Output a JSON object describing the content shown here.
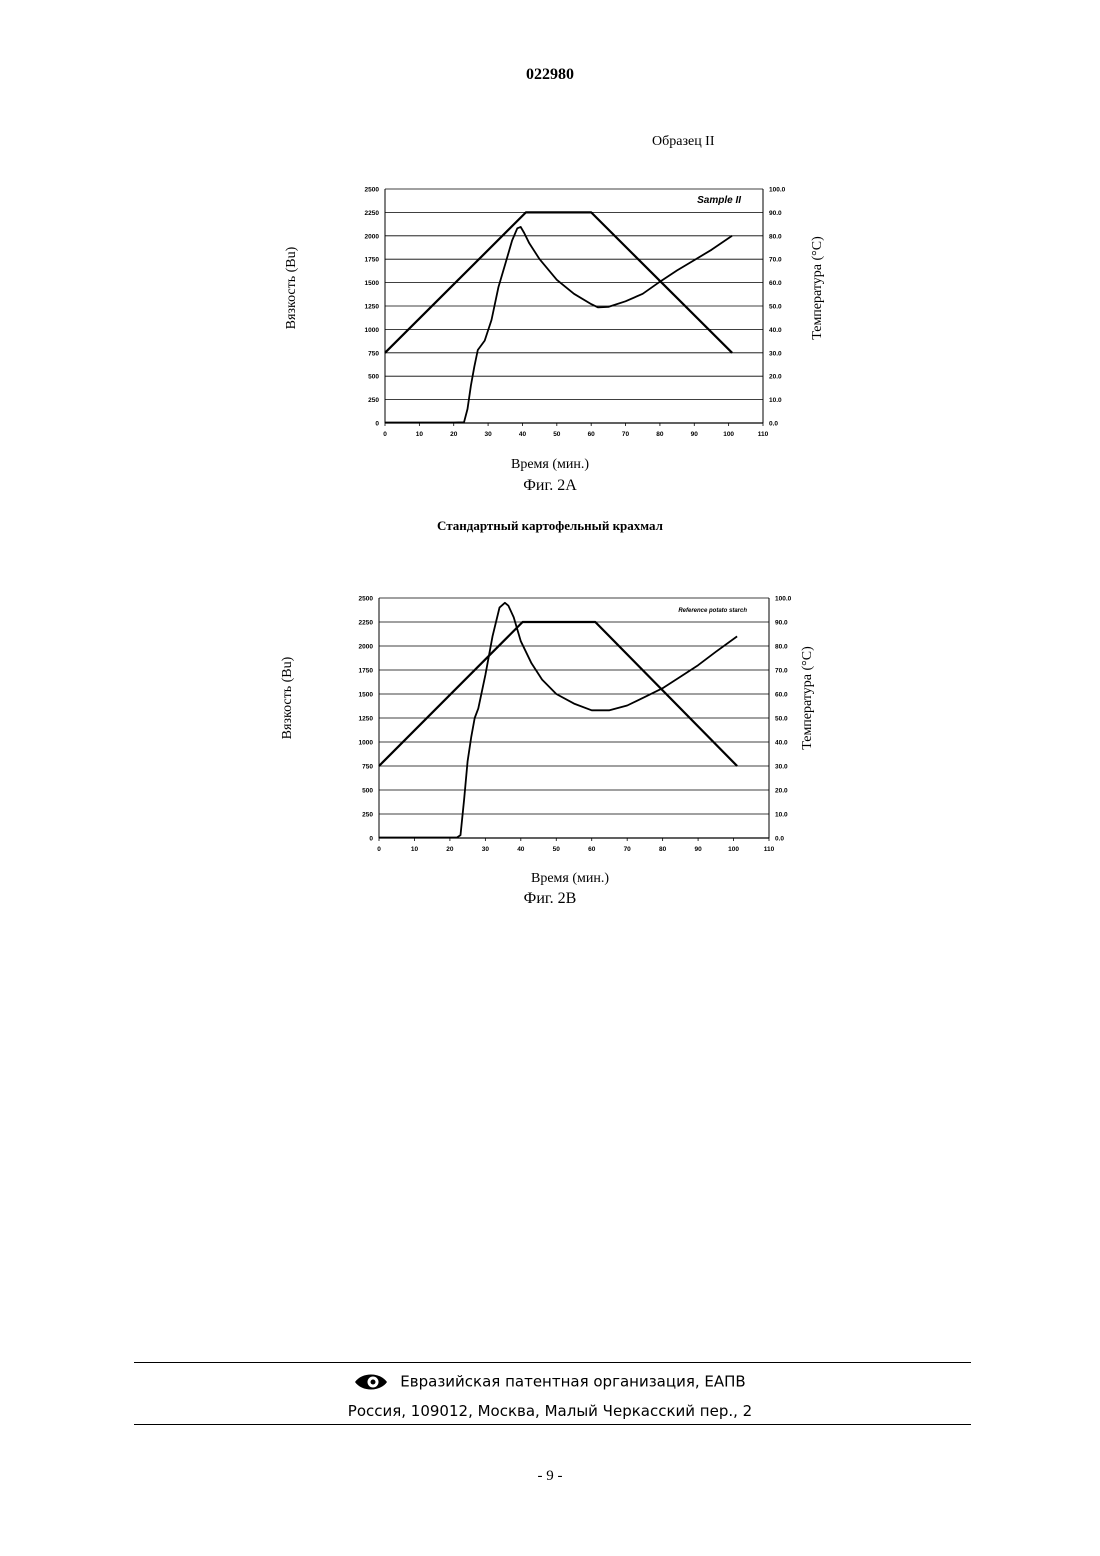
{
  "header": {
    "doc_number": "022980"
  },
  "footer": {
    "org_name": "Евразийская патентная организация, ЕАПВ",
    "address": "Россия, 109012, Москва, Малый Черкасский пер., 2",
    "page_number": "- 9 -",
    "logo_icon": "eapo-eye-logo"
  },
  "chart_data": [
    {
      "type": "line",
      "figure_caption": "Фиг. 2A",
      "title": "Образец II",
      "legend_text": "Sample II",
      "legend_placement": "top-right",
      "xlabel": "Время (мин.)",
      "ylabel": "Вязкость (Bu)",
      "y2label": "Температура (°C)",
      "xlim": [
        0,
        110
      ],
      "ylim": [
        0,
        2500
      ],
      "y2lim": [
        0,
        100
      ],
      "grid": true,
      "x_ticks": [
        "0",
        "10",
        "20",
        "30",
        "40",
        "50",
        "60",
        "70",
        "80",
        "90",
        "100",
        "110"
      ],
      "y_ticks": [
        "0",
        "250",
        "500",
        "750",
        "1000",
        "1250",
        "1500",
        "1750",
        "2000",
        "2250",
        "2500"
      ],
      "y2_ticks": [
        "0.0",
        "10.0",
        "20.0",
        "30.0",
        "40.0",
        "50.0",
        "60.0",
        "70.0",
        "80.0",
        "90.0",
        "100.0"
      ],
      "series": [
        {
          "axis": "left",
          "points": [
            [
              0,
              5
            ],
            [
              6,
              5
            ],
            [
              10,
              5
            ],
            [
              20,
              5
            ],
            [
              23,
              8
            ],
            [
              24,
              150
            ],
            [
              25,
              400
            ],
            [
              26,
              600
            ],
            [
              27,
              780
            ],
            [
              29,
              880
            ],
            [
              31,
              1100
            ],
            [
              33,
              1450
            ],
            [
              35,
              1700
            ],
            [
              37,
              1950
            ],
            [
              38.5,
              2080
            ],
            [
              39.5,
              2095
            ],
            [
              40.5,
              2030
            ],
            [
              42,
              1920
            ],
            [
              45,
              1750
            ],
            [
              50,
              1530
            ],
            [
              55,
              1380
            ],
            [
              60,
              1270
            ],
            [
              62,
              1235
            ],
            [
              65,
              1240
            ],
            [
              70,
              1300
            ],
            [
              75,
              1380
            ],
            [
              80,
              1510
            ],
            [
              85,
              1630
            ],
            [
              90,
              1740
            ],
            [
              95,
              1850
            ],
            [
              101,
              2000
            ]
          ]
        },
        {
          "axis": "right",
          "points": [
            [
              0,
              30
            ],
            [
              41,
              90
            ],
            [
              60,
              90
            ],
            [
              101,
              30
            ]
          ]
        }
      ]
    },
    {
      "type": "line",
      "figure_caption": "Фиг. 2B",
      "title": "Стандартный картофельный крахмал",
      "legend_text": "Reference potato starch",
      "legend_placement": "top-right",
      "xlabel": "Время (мин.)",
      "ylabel": "Вязкость (Bu)",
      "y2label": "Температура (°C)",
      "xlim": [
        0,
        110
      ],
      "ylim": [
        0,
        2500
      ],
      "y2lim": [
        0,
        100
      ],
      "grid": true,
      "x_ticks": [
        "0",
        "10",
        "20",
        "30",
        "40",
        "50",
        "60",
        "70",
        "80",
        "90",
        "100",
        "110"
      ],
      "y_ticks": [
        "0",
        "250",
        "500",
        "750",
        "1000",
        "1250",
        "1500",
        "1750",
        "2000",
        "2250",
        "2500"
      ],
      "y2_ticks": [
        "0.0",
        "10.0",
        "20.0",
        "30.0",
        "40.0",
        "50.0",
        "60.0",
        "70.0",
        "80.0",
        "90.0",
        "100.0"
      ],
      "series": [
        {
          "axis": "left",
          "points": [
            [
              0,
              5
            ],
            [
              10,
              5
            ],
            [
              22,
              5
            ],
            [
              23,
              30
            ],
            [
              24,
              400
            ],
            [
              25,
              800
            ],
            [
              26,
              1050
            ],
            [
              27,
              1250
            ],
            [
              28,
              1350
            ],
            [
              30,
              1700
            ],
            [
              32,
              2100
            ],
            [
              34,
              2400
            ],
            [
              35.5,
              2450
            ],
            [
              36.5,
              2420
            ],
            [
              38,
              2300
            ],
            [
              40,
              2050
            ],
            [
              43,
              1820
            ],
            [
              46,
              1650
            ],
            [
              50,
              1500
            ],
            [
              55,
              1400
            ],
            [
              60,
              1330
            ],
            [
              65,
              1330
            ],
            [
              70,
              1380
            ],
            [
              75,
              1470
            ],
            [
              80,
              1560
            ],
            [
              85,
              1680
            ],
            [
              90,
              1800
            ],
            [
              95,
              1940
            ],
            [
              101,
              2100
            ]
          ]
        },
        {
          "axis": "right",
          "points": [
            [
              0,
              30
            ],
            [
              40.5,
              90
            ],
            [
              61,
              90
            ],
            [
              101,
              30
            ]
          ]
        }
      ]
    }
  ]
}
